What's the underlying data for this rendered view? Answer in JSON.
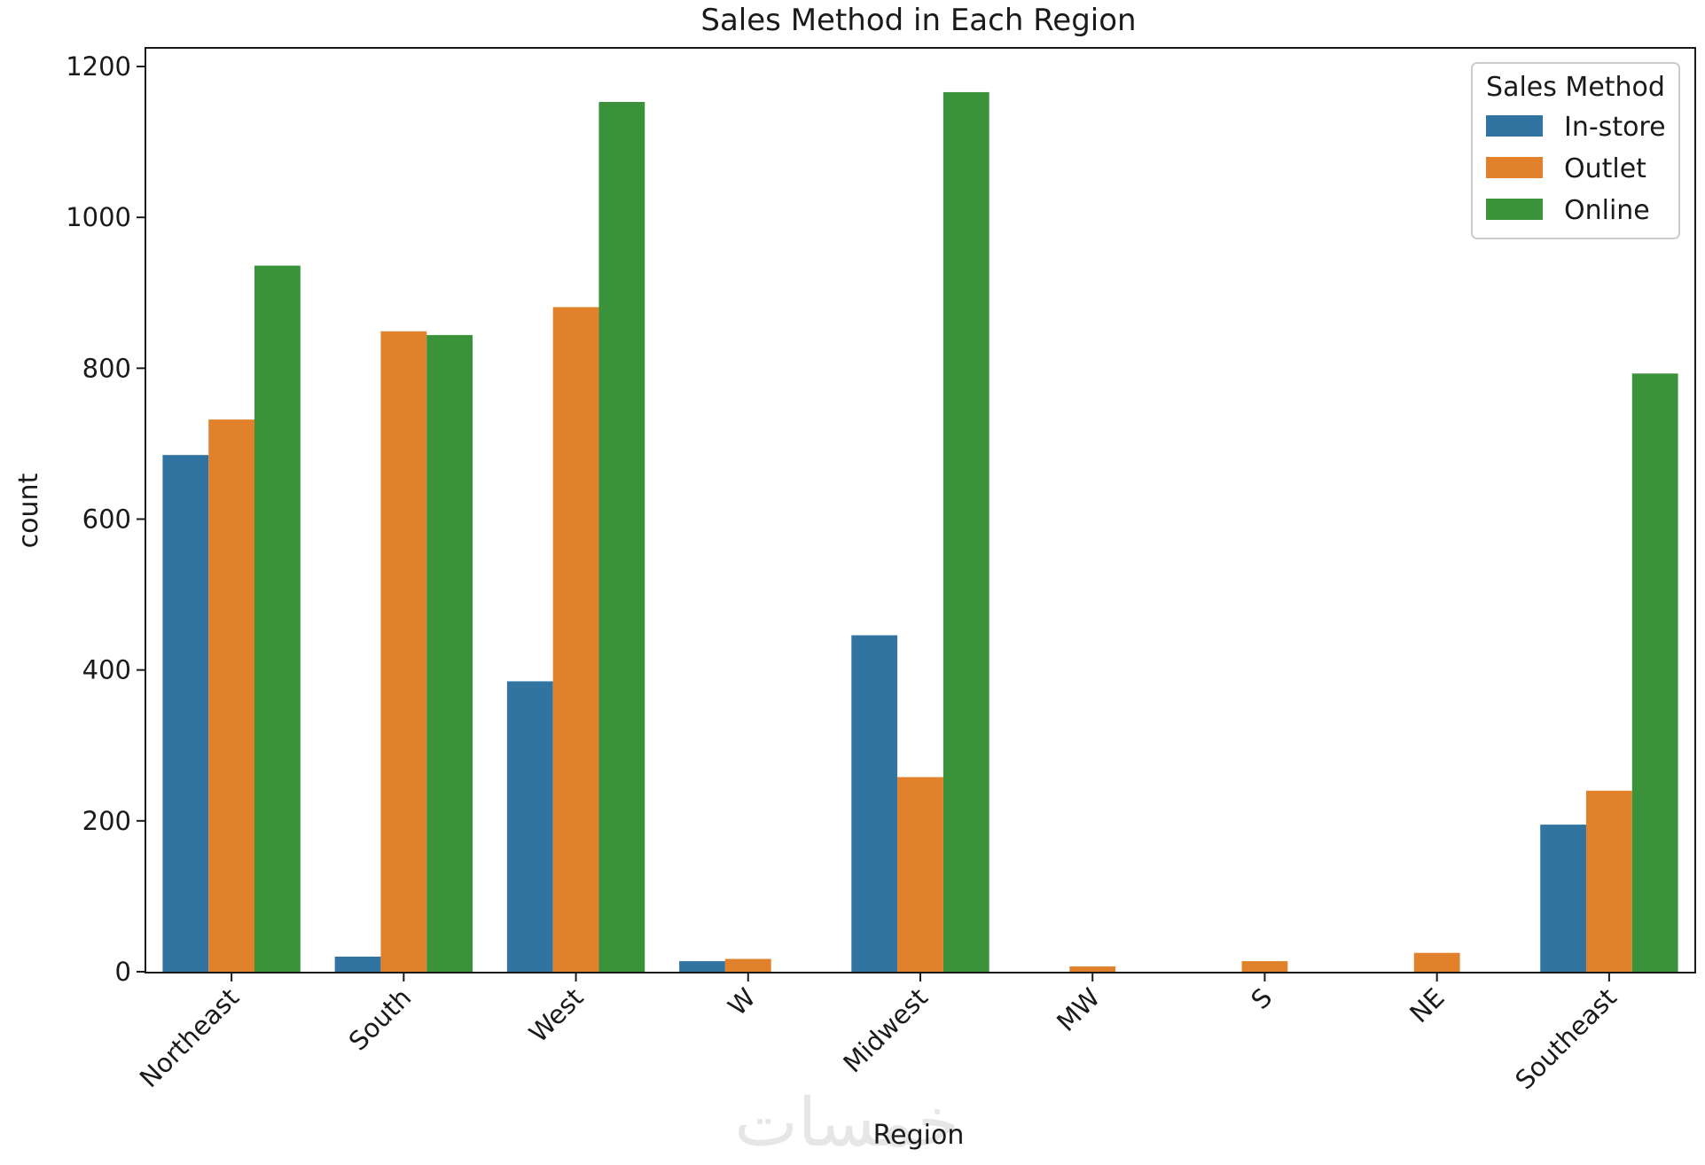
{
  "watermark": "خمسات",
  "chart_data": {
    "type": "bar",
    "title": "Sales Method in Each Region",
    "xlabel": "Region",
    "ylabel": "count",
    "categories": [
      "Northeast",
      "South",
      "West",
      "W",
      "Midwest",
      "MW",
      "S",
      "NE",
      "Southeast"
    ],
    "series": [
      {
        "name": "In-store",
        "color": "#3274a1",
        "values": [
          685,
          20,
          385,
          14,
          446,
          0,
          0,
          0,
          195
        ]
      },
      {
        "name": "Outlet",
        "color": "#e1812c",
        "values": [
          732,
          849,
          881,
          17,
          258,
          7,
          14,
          25,
          240
        ]
      },
      {
        "name": "Online",
        "color": "#3a923a",
        "values": [
          936,
          844,
          1153,
          0,
          1166,
          0,
          0,
          0,
          793
        ]
      }
    ],
    "ylim": [
      0,
      1200
    ],
    "yticks": [
      0,
      200,
      400,
      600,
      800,
      1000,
      1200
    ],
    "legend": {
      "title": "Sales Method",
      "position": "top-right"
    },
    "grid": false
  }
}
